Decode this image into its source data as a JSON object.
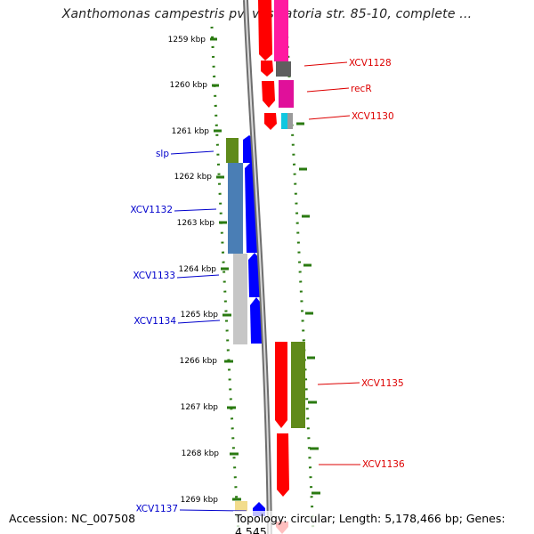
{
  "title": "Xanthomonas campestris pv. vesicatoria str. 85-10, complete ...",
  "accession_text": "Accession: NC_007508",
  "summary_text": "Topology: circular; Length: 5,178,466 bp; Genes: 4,545",
  "colors": {
    "forward_label": "#dd0000",
    "reverse_label": "#0000cc",
    "tick": "#2a7a10",
    "backbone": "#8a8a8a"
  },
  "chart_data": {
    "type": "genome-map",
    "tick_labels": [
      "1259 kbp",
      "1260 kbp",
      "1261 kbp",
      "1262 kbp",
      "1263 kbp",
      "1264 kbp",
      "1265 kbp",
      "1266 kbp",
      "1267 kbp",
      "1268 kbp",
      "1269 kbp"
    ],
    "forward_labels": [
      {
        "name": "XCV1128",
        "kbp": 1259.6
      },
      {
        "name": "recR",
        "kbp": 1260.1
      },
      {
        "name": "XCV1130",
        "kbp": 1260.8
      },
      {
        "name": "XCV1135",
        "kbp": 1266.5
      },
      {
        "name": "XCV1136",
        "kbp": 1268.3
      }
    ],
    "reverse_labels": [
      {
        "name": "slp",
        "kbp": 1261.5
      },
      {
        "name": "XCV1132",
        "kbp": 1262.7
      },
      {
        "name": "XCV1133",
        "kbp": 1264.2
      },
      {
        "name": "XCV1134",
        "kbp": 1265.2
      },
      {
        "name": "XCV1137",
        "kbp": 1269.2
      }
    ]
  }
}
